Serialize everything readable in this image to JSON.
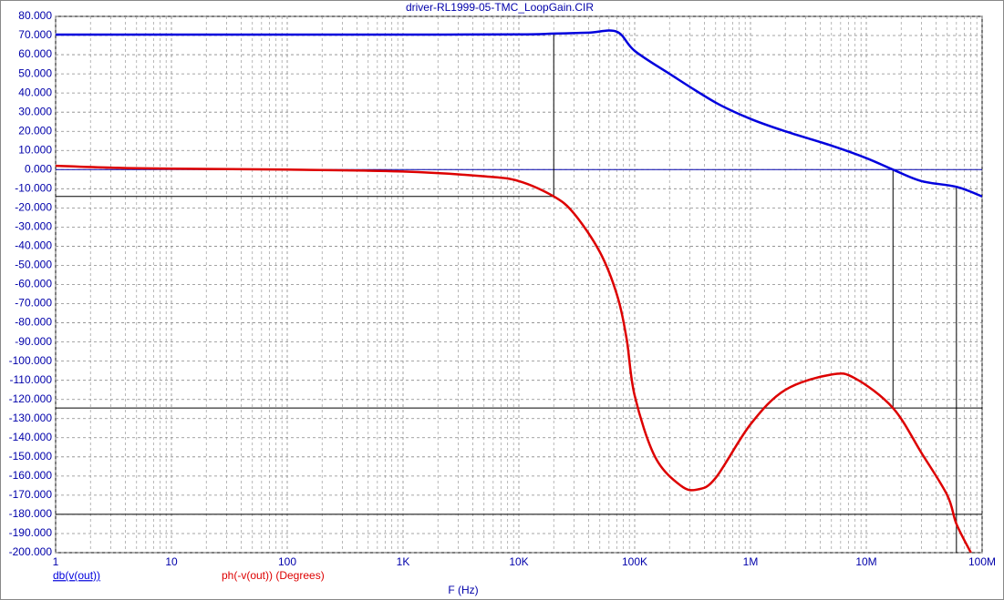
{
  "chart_data": {
    "type": "line",
    "title": "driver-RL1999-05-TMC_LoopGain.CIR",
    "xlabel": "F (Hz)",
    "xscale": "log",
    "grid": true,
    "xlim": [
      1,
      100000000
    ],
    "ylim": [
      -200,
      80
    ],
    "xticks": [
      1,
      10,
      100,
      {
        "value": 1000,
        "label": "1K"
      },
      {
        "value": 10000,
        "label": "10K"
      },
      {
        "value": 100000,
        "label": "100K"
      },
      {
        "value": 1000000,
        "label": "1M"
      },
      {
        "value": 10000000,
        "label": "10M"
      },
      {
        "value": 100000000,
        "label": "100M"
      }
    ],
    "xminor": [
      2,
      3,
      4,
      5,
      6,
      7,
      8,
      9,
      20,
      30,
      40,
      50,
      60,
      70,
      80,
      90,
      200,
      300,
      400,
      500,
      600,
      700,
      800,
      900,
      2000,
      3000,
      4000,
      5000,
      6000,
      7000,
      8000,
      9000,
      20000,
      30000,
      40000,
      50000,
      60000,
      70000,
      80000,
      90000,
      200000,
      300000,
      400000,
      500000,
      600000,
      700000,
      800000,
      900000,
      2000000,
      3000000,
      4000000,
      5000000,
      6000000,
      7000000,
      8000000,
      9000000,
      20000000,
      30000000,
      40000000,
      50000000,
      60000000,
      70000000,
      80000000,
      90000000
    ],
    "yticks": [
      {
        "value": 80,
        "label": "80.000"
      },
      {
        "value": 70,
        "label": "70.000"
      },
      {
        "value": 60,
        "label": "60.000"
      },
      {
        "value": 50,
        "label": "50.000"
      },
      {
        "value": 40,
        "label": "40.000"
      },
      {
        "value": 30,
        "label": "30.000"
      },
      {
        "value": 20,
        "label": "20.000"
      },
      {
        "value": 10,
        "label": "10.000"
      },
      {
        "value": 0,
        "label": "0.000"
      },
      {
        "value": -10,
        "label": "-10.000"
      },
      {
        "value": -20,
        "label": "-20.000"
      },
      {
        "value": -30,
        "label": "-30.000"
      },
      {
        "value": -40,
        "label": "-40.000"
      },
      {
        "value": -50,
        "label": "-50.000"
      },
      {
        "value": -60,
        "label": "-60.000"
      },
      {
        "value": -70,
        "label": "-70.000"
      },
      {
        "value": -80,
        "label": "-80.000"
      },
      {
        "value": -90,
        "label": "-90.000"
      },
      {
        "value": -100,
        "label": "-100.000"
      },
      {
        "value": -110,
        "label": "-110.000"
      },
      {
        "value": -120,
        "label": "-120.000"
      },
      {
        "value": -130,
        "label": "-130.000"
      },
      {
        "value": -140,
        "label": "-140.000"
      },
      {
        "value": -150,
        "label": "-150.000"
      },
      {
        "value": -160,
        "label": "-160.000"
      },
      {
        "value": -170,
        "label": "-170.000"
      },
      {
        "value": -180,
        "label": "-180.000"
      },
      {
        "value": -190,
        "label": "-190.000"
      },
      {
        "value": -200,
        "label": "-200.000"
      }
    ],
    "series": [
      {
        "name": "db(v(out))",
        "color": "#0000dd",
        "x": [
          1,
          10,
          100,
          1000,
          10000,
          20000,
          40000,
          70000,
          100000,
          200000,
          500000,
          1000000,
          2000000,
          5000000,
          10000000,
          17000000,
          30000000,
          60000000,
          100000000
        ],
        "values": [
          70.5,
          70.5,
          70.5,
          70.5,
          70.6,
          71,
          71.5,
          72,
          62,
          50,
          35,
          26.5,
          20,
          12.5,
          6,
          0,
          -6,
          -9,
          -14
        ]
      },
      {
        "name": "ph(-v(out)) (Degrees)",
        "color": "#dd0000",
        "x": [
          1,
          3,
          10,
          100,
          1000,
          5000,
          10000,
          20000,
          30000,
          50000,
          70000,
          85000,
          100000,
          150000,
          250000,
          350000,
          500000,
          1000000,
          2000000,
          5000000,
          8000000,
          17000000,
          30000000,
          50000000,
          60000000,
          80000000
        ],
        "values": [
          2,
          1,
          0.5,
          0,
          -1,
          -3.5,
          -6,
          -14,
          -23,
          -43,
          -65,
          -88,
          -118,
          -150,
          -165,
          -167,
          -161,
          -133,
          -115,
          -107,
          -109,
          -124.5,
          -148,
          -170,
          -185,
          -200
        ]
      }
    ],
    "cursor_segments": [
      {
        "x": [
          1,
          100000000
        ],
        "y": [
          0,
          0
        ],
        "color": "#0000aa"
      },
      {
        "x": [
          20000,
          20000
        ],
        "y": [
          71,
          -14
        ],
        "color": "#000000"
      },
      {
        "x": [
          1,
          20000
        ],
        "y": [
          -14,
          -14
        ],
        "color": "#000000"
      },
      {
        "x": [
          17000000,
          17000000
        ],
        "y": [
          0,
          -124.5
        ],
        "color": "#000000"
      },
      {
        "x": [
          1,
          100000000
        ],
        "y": [
          -124.5,
          -124.5
        ],
        "color": "#000000"
      },
      {
        "x": [
          1,
          100000000
        ],
        "y": [
          -180,
          -180
        ],
        "color": "#000000"
      },
      {
        "x": [
          60000000,
          60000000
        ],
        "y": [
          -9,
          -200
        ],
        "color": "#000000"
      }
    ]
  }
}
